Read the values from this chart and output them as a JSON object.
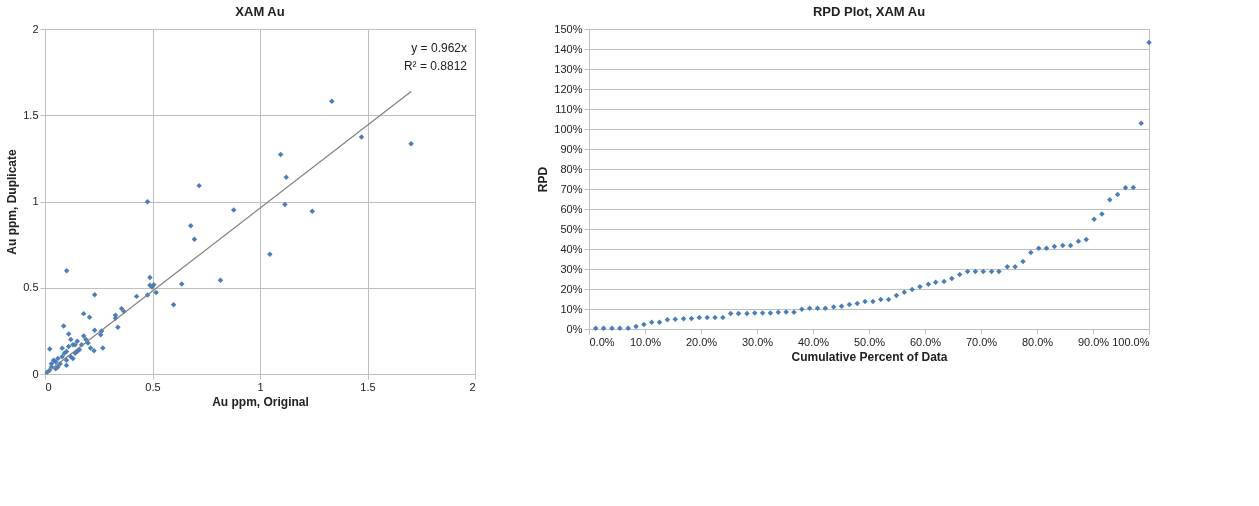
{
  "chart_data": [
    {
      "type": "scatter",
      "title": "XAM Au",
      "xlabel": "Au ppm, Original",
      "ylabel": "Au ppm, Duplicate",
      "xlim": [
        0,
        2
      ],
      "ylim": [
        0,
        2
      ],
      "xticks": [
        0,
        0.5,
        1,
        1.5,
        2
      ],
      "yticks": [
        0,
        0.5,
        1,
        1.5,
        2
      ],
      "grid": true,
      "marker": "diamond",
      "annotations": [
        "y = 0.962x",
        "R² = 0.8812"
      ],
      "series": [
        {
          "type": "scatter",
          "color": "#4a7ebb",
          "x": [
            1.334,
            1.472,
            1.703,
            1.096,
            1.122,
            0.717,
            0.477,
            1.116,
            0.878,
            1.243,
            0.678,
            0.695,
            1.046,
            0.101,
            0.488,
            0.816,
            0.636,
            0.488,
            0.506,
            0.498,
            0.517,
            0.598,
            0.231,
            0.426,
            0.477,
            0.356,
            0.367,
            0.328,
            0.328,
            0.339,
            0.18,
            0.207,
            0.087,
            0.11,
            0.231,
            0.263,
            0.259,
            0.269,
            0.212,
            0.228,
            0.022,
            0.12,
            0.15,
            0.18,
            0.2,
            0.1,
            0.08,
            0.05,
            0.03,
            0.02,
            0.06,
            0.1,
            0.12,
            0.14,
            0.16,
            0.04,
            0.07,
            0.09,
            0.11,
            0.13,
            0.05,
            0.01,
            0.03,
            0.08,
            0.15,
            0.17,
            0.19,
            0.14,
            0.1,
            0.06,
            0.13
          ],
          "values": [
            1.581,
            1.374,
            1.335,
            1.273,
            1.14,
            1.092,
            0.999,
            0.982,
            0.951,
            0.943,
            0.86,
            0.781,
            0.694,
            0.599,
            0.56,
            0.543,
            0.522,
            0.515,
            0.518,
            0.504,
            0.473,
            0.402,
            0.46,
            0.45,
            0.458,
            0.379,
            0.363,
            0.34,
            0.323,
            0.271,
            0.35,
            0.329,
            0.278,
            0.232,
            0.253,
            0.249,
            0.228,
            0.151,
            0.151,
            0.135,
            0.145,
            0.2,
            0.19,
            0.22,
            0.18,
            0.13,
            0.1,
            0.07,
            0.04,
            0.02,
            0.04,
            0.08,
            0.1,
            0.12,
            0.14,
            0.08,
            0.06,
            0.12,
            0.16,
            0.09,
            0.03,
            0.01,
            0.06,
            0.15,
            0.13,
            0.17,
            0.2,
            0.17,
            0.05,
            0.09,
            0.17
          ]
        },
        {
          "type": "line",
          "marker": "none",
          "color": "#808080",
          "x": [
            0,
            1.703
          ],
          "values": [
            0,
            1.638
          ]
        }
      ]
    },
    {
      "type": "scatter",
      "title": "RPD Plot, XAM Au",
      "xlabel": "Cumulative Percent of Data",
      "ylabel": "RPD",
      "xlim": [
        0,
        100
      ],
      "ylim": [
        0,
        150
      ],
      "grid": "y",
      "marker": "diamond",
      "xticks": [
        {
          "value": 0,
          "label": "0.0%"
        },
        {
          "value": 10,
          "label": "10.0%"
        },
        {
          "value": 20,
          "label": "20.0%"
        },
        {
          "value": 30,
          "label": "30.0%"
        },
        {
          "value": 40,
          "label": "40.0%"
        },
        {
          "value": 50,
          "label": "50.0%"
        },
        {
          "value": 60,
          "label": "60.0%"
        },
        {
          "value": 70,
          "label": "70.0%"
        },
        {
          "value": 80,
          "label": "80.0%"
        },
        {
          "value": 90,
          "label": "90.0%"
        },
        {
          "value": 100,
          "label": "100.0%"
        }
      ],
      "yticks": [
        {
          "value": 0,
          "label": "0%"
        },
        {
          "value": 10,
          "label": "10%"
        },
        {
          "value": 20,
          "label": "20%"
        },
        {
          "value": 30,
          "label": "30%"
        },
        {
          "value": 40,
          "label": "40%"
        },
        {
          "value": 50,
          "label": "50%"
        },
        {
          "value": 60,
          "label": "60%"
        },
        {
          "value": 70,
          "label": "70%"
        },
        {
          "value": 80,
          "label": "80%"
        },
        {
          "value": 90,
          "label": "90%"
        },
        {
          "value": 100,
          "label": "100%"
        },
        {
          "value": 110,
          "label": "110%"
        },
        {
          "value": 120,
          "label": "120%"
        },
        {
          "value": 130,
          "label": "130%"
        },
        {
          "value": 140,
          "label": "140%"
        },
        {
          "value": 150,
          "label": "150%"
        }
      ],
      "series": [
        {
          "type": "scatter",
          "color": "#4a7ebb",
          "x": [
            1.2,
            2.6,
            4.1,
            5.5,
            7.0,
            8.4,
            9.8,
            11.2,
            12.6,
            14.0,
            15.4,
            16.9,
            18.3,
            19.7,
            21.1,
            22.5,
            23.9,
            25.3,
            26.7,
            28.2,
            29.6,
            31.0,
            32.4,
            33.8,
            35.2,
            36.6,
            38.0,
            39.4,
            40.8,
            42.2,
            43.7,
            45.1,
            46.5,
            47.9,
            49.3,
            50.7,
            52.1,
            53.5,
            54.9,
            56.3,
            57.7,
            59.1,
            60.6,
            61.9,
            63.4,
            64.8,
            66.2,
            67.6,
            69.0,
            70.4,
            71.9,
            73.2,
            74.7,
            76.1,
            77.5,
            78.9,
            80.3,
            81.7,
            83.1,
            84.6,
            86.0,
            87.4,
            88.8,
            90.2,
            91.6,
            93.0,
            94.4,
            95.8,
            97.2,
            98.6,
            100.0
          ],
          "values": [
            0.4,
            0.4,
            0.4,
            0.4,
            0.4,
            1.3,
            2.3,
            3.4,
            3.4,
            4.6,
            4.9,
            5.1,
            5.3,
            5.7,
            5.7,
            5.7,
            5.7,
            7.8,
            7.8,
            7.8,
            8.0,
            8.0,
            8.0,
            8.4,
            8.5,
            8.4,
            9.9,
            10.4,
            10.4,
            10.4,
            11.0,
            11.4,
            12.2,
            12.7,
            13.7,
            13.7,
            14.8,
            14.8,
            16.7,
            18.4,
            19.7,
            21.1,
            22.4,
            23.4,
            23.7,
            25.3,
            27.3,
            28.7,
            28.7,
            28.7,
            28.7,
            28.7,
            31.1,
            31.1,
            33.8,
            38.2,
            40.4,
            40.4,
            41.2,
            41.8,
            41.8,
            43.9,
            44.8,
            54.9,
            57.5,
            64.6,
            67.2,
            70.6,
            70.8,
            102.9,
            143.3
          ]
        }
      ]
    }
  ]
}
